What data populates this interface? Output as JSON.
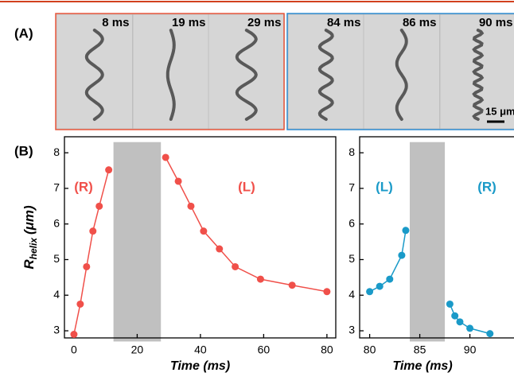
{
  "figure": {
    "panel_a_label": "(A)",
    "panel_b_label": "(B)",
    "frames": [
      "8 ms",
      "19 ms",
      "29 ms",
      "84 ms",
      "86 ms",
      "90 ms"
    ],
    "scale_bar": "15 μm"
  },
  "chart_data": [
    {
      "type": "line",
      "xlabel": "Time (ms)",
      "ylabel": {
        "main": "R",
        "sub": "helix",
        "unit": "(μm)"
      },
      "xlim": [
        -3,
        82.8
      ],
      "ylim": [
        2.8,
        8.45
      ],
      "xticks": [
        0,
        20,
        40,
        60,
        80
      ],
      "yticks": [
        3,
        4,
        5,
        6,
        7,
        8
      ],
      "shade": {
        "x": [
          12.5,
          27.5
        ],
        "y": [
          2.7,
          8.3
        ],
        "color": "#c0c0c0"
      },
      "annotations": [
        "(R)",
        "(L)"
      ],
      "series": [
        {
          "color": "#f0504a",
          "x": [
            0,
            2,
            4,
            6,
            8,
            11
          ],
          "values": [
            2.9,
            3.75,
            4.8,
            5.8,
            6.5,
            7.52
          ]
        },
        {
          "color": "#f0504a",
          "x": [
            29,
            33,
            37,
            41,
            46,
            51,
            59,
            69,
            80
          ],
          "values": [
            7.87,
            7.2,
            6.5,
            5.8,
            5.3,
            4.8,
            4.45,
            4.28,
            4.1
          ]
        }
      ]
    },
    {
      "type": "line",
      "xlabel": "Time (ms)",
      "xlim": [
        79,
        94.4
      ],
      "ylim": [
        2.8,
        8.45
      ],
      "xticks": [
        80,
        85,
        90
      ],
      "yticks": [
        3,
        4,
        5,
        6,
        7,
        8
      ],
      "shade": {
        "x": [
          84,
          87.5
        ],
        "y": [
          2.7,
          8.3
        ],
        "color": "#c0c0c0"
      },
      "annotations": [
        "(L)",
        "(R)"
      ],
      "series": [
        {
          "color": "#1a9ac8",
          "x": [
            80,
            81,
            82,
            83.2,
            83.6
          ],
          "values": [
            4.1,
            4.25,
            4.45,
            5.12,
            5.82
          ]
        },
        {
          "color": "#1a9ac8",
          "x": [
            88,
            88.5,
            89,
            90,
            92
          ],
          "values": [
            3.75,
            3.42,
            3.25,
            3.07,
            2.92
          ]
        }
      ]
    }
  ]
}
